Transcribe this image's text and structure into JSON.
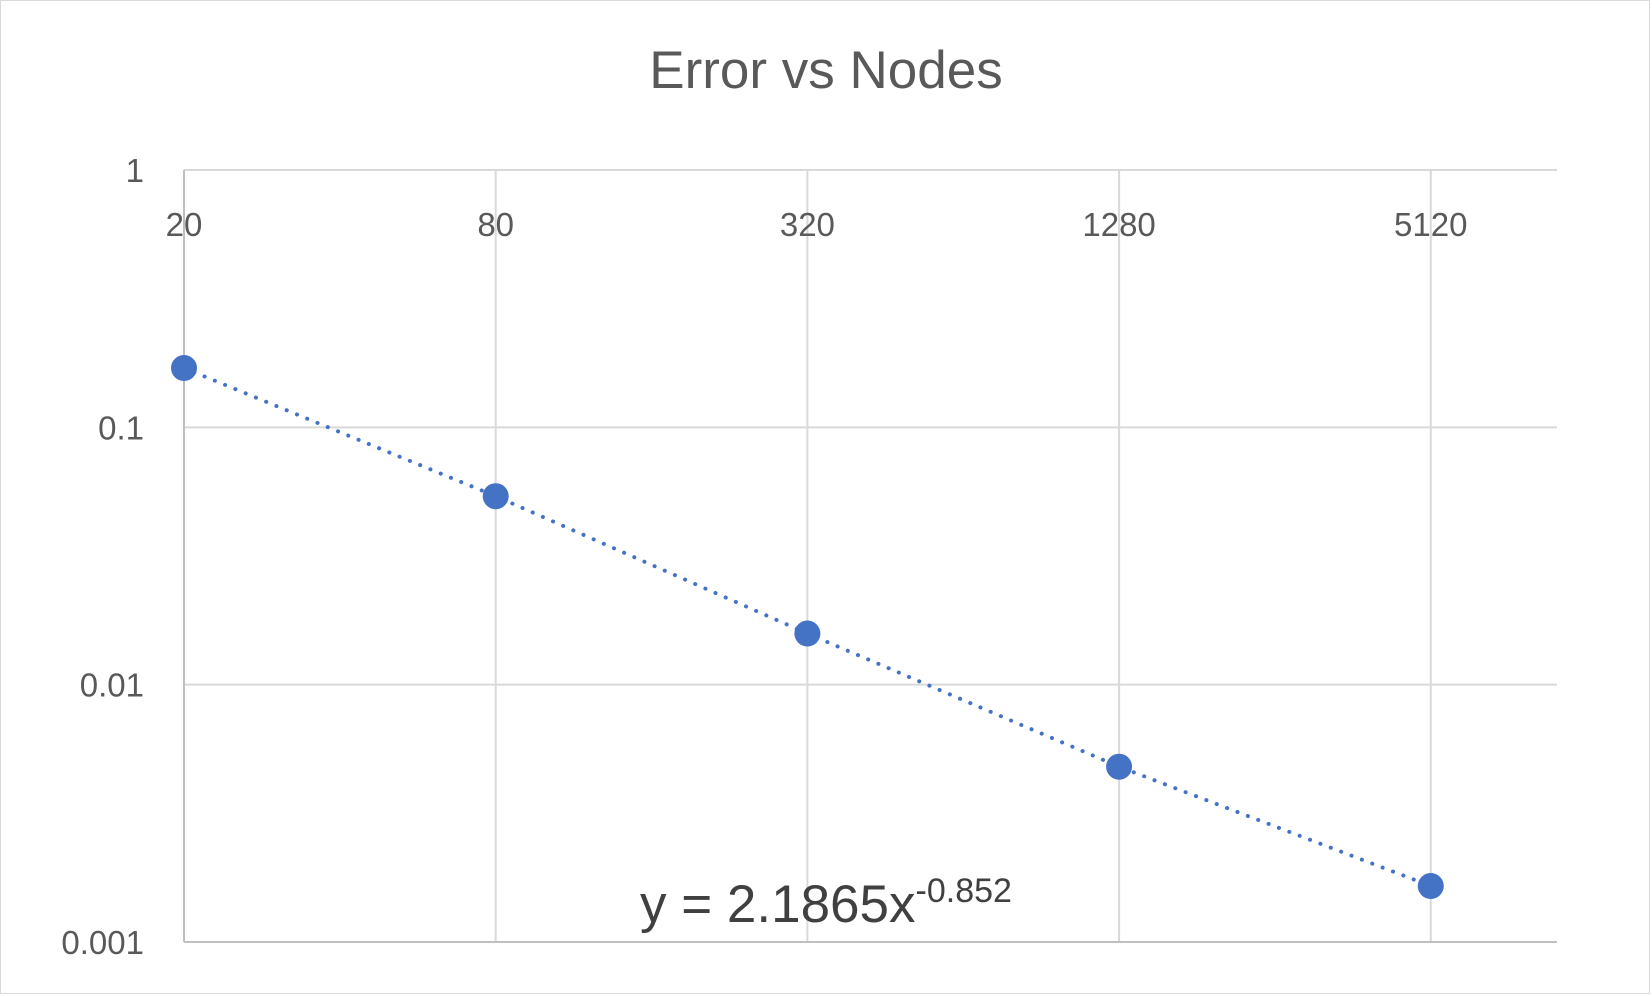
{
  "chart_data": {
    "type": "scatter",
    "title": "Error vs Nodes",
    "xlabel": "",
    "ylabel": "",
    "x_scale": "log2",
    "y_scale": "log10",
    "x_ticks": [
      "20",
      "80",
      "320",
      "1280",
      "5120"
    ],
    "y_ticks": [
      "1",
      "0.1",
      "0.01",
      "0.001"
    ],
    "xlim": [
      20,
      5120
    ],
    "ylim": [
      0.001,
      1
    ],
    "grid": true,
    "legend": "none",
    "series": [
      {
        "x": [
          20,
          80,
          320,
          1280,
          5120
        ],
        "y": [
          0.17,
          0.054,
          0.0158,
          0.0048,
          0.00165
        ],
        "color": "#4472c4",
        "trendline": {
          "type": "power",
          "style": "dotted",
          "equation_base": "y = 2.1865x",
          "equation_exponent": "-0.852"
        }
      }
    ]
  }
}
